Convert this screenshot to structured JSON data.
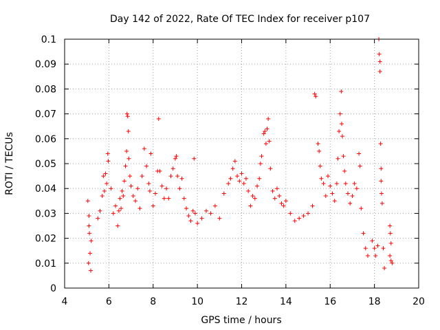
{
  "chart_data": {
    "type": "scatter",
    "title": "Day 142 of 2022, Rate Of TEC Index for receiver p107",
    "xlabel": "GPS time / hours",
    "ylabel": "ROTI / TECUs",
    "xlim": [
      4,
      20
    ],
    "ylim": [
      0,
      0.1
    ],
    "x_ticks": [
      "4",
      "6",
      "8",
      "10",
      "12",
      "14",
      "16",
      "18",
      "20"
    ],
    "y_ticks": [
      "0",
      "0.01",
      "0.02",
      "0.03",
      "0.04",
      "0.05",
      "0.06",
      "0.07",
      "0.08",
      "0.09",
      "0.1"
    ],
    "grid": true,
    "marker": "+",
    "series": [
      {
        "name": "ROTI",
        "color": "#ff0000",
        "points": [
          [
            5.05,
            0.035
          ],
          [
            5.1,
            0.029
          ],
          [
            5.12,
            0.022
          ],
          [
            5.15,
            0.014
          ],
          [
            5.08,
            0.01
          ],
          [
            5.18,
            0.007
          ],
          [
            5.2,
            0.019
          ],
          [
            5.1,
            0.025
          ],
          [
            5.5,
            0.028
          ],
          [
            5.6,
            0.031
          ],
          [
            5.7,
            0.037
          ],
          [
            5.75,
            0.045
          ],
          [
            5.8,
            0.039
          ],
          [
            5.85,
            0.046
          ],
          [
            5.9,
            0.042
          ],
          [
            5.95,
            0.054
          ],
          [
            5.97,
            0.051
          ],
          [
            6.1,
            0.04
          ],
          [
            6.2,
            0.03
          ],
          [
            6.3,
            0.033
          ],
          [
            6.4,
            0.025
          ],
          [
            6.45,
            0.031
          ],
          [
            6.5,
            0.036
          ],
          [
            6.55,
            0.032
          ],
          [
            6.6,
            0.039
          ],
          [
            6.65,
            0.037
          ],
          [
            6.7,
            0.043
          ],
          [
            6.75,
            0.049
          ],
          [
            6.8,
            0.055
          ],
          [
            6.82,
            0.07
          ],
          [
            6.85,
            0.069
          ],
          [
            6.88,
            0.063
          ],
          [
            6.9,
            0.052
          ],
          [
            6.95,
            0.045
          ],
          [
            7.0,
            0.041
          ],
          [
            7.1,
            0.037
          ],
          [
            7.2,
            0.035
          ],
          [
            7.3,
            0.04
          ],
          [
            7.4,
            0.032
          ],
          [
            7.5,
            0.045
          ],
          [
            7.6,
            0.056
          ],
          [
            7.7,
            0.049
          ],
          [
            7.8,
            0.042
          ],
          [
            7.85,
            0.039
          ],
          [
            7.9,
            0.054
          ],
          [
            8.0,
            0.033
          ],
          [
            8.1,
            0.038
          ],
          [
            8.2,
            0.047
          ],
          [
            8.25,
            0.068
          ],
          [
            8.3,
            0.047
          ],
          [
            8.4,
            0.041
          ],
          [
            8.5,
            0.036
          ],
          [
            8.6,
            0.04
          ],
          [
            8.7,
            0.036
          ],
          [
            8.8,
            0.045
          ],
          [
            8.9,
            0.048
          ],
          [
            9.0,
            0.052
          ],
          [
            9.05,
            0.053
          ],
          [
            9.1,
            0.045
          ],
          [
            9.2,
            0.04
          ],
          [
            9.3,
            0.044
          ],
          [
            9.4,
            0.036
          ],
          [
            9.5,
            0.032
          ],
          [
            9.6,
            0.029
          ],
          [
            9.7,
            0.027
          ],
          [
            9.8,
            0.031
          ],
          [
            9.85,
            0.052
          ],
          [
            9.9,
            0.03
          ],
          [
            10.0,
            0.026
          ],
          [
            10.2,
            0.028
          ],
          [
            10.4,
            0.031
          ],
          [
            10.6,
            0.03
          ],
          [
            10.8,
            0.033
          ],
          [
            11.0,
            0.028
          ],
          [
            11.2,
            0.038
          ],
          [
            11.4,
            0.042
          ],
          [
            11.5,
            0.044
          ],
          [
            11.6,
            0.048
          ],
          [
            11.7,
            0.051
          ],
          [
            11.8,
            0.045
          ],
          [
            11.9,
            0.043
          ],
          [
            12.0,
            0.046
          ],
          [
            12.1,
            0.042
          ],
          [
            12.2,
            0.044
          ],
          [
            12.3,
            0.039
          ],
          [
            12.4,
            0.033
          ],
          [
            12.5,
            0.037
          ],
          [
            12.6,
            0.036
          ],
          [
            12.7,
            0.041
          ],
          [
            12.8,
            0.044
          ],
          [
            12.85,
            0.05
          ],
          [
            12.9,
            0.053
          ],
          [
            13.0,
            0.062
          ],
          [
            13.05,
            0.063
          ],
          [
            13.1,
            0.058
          ],
          [
            13.15,
            0.064
          ],
          [
            13.2,
            0.068
          ],
          [
            13.25,
            0.059
          ],
          [
            13.3,
            0.048
          ],
          [
            13.4,
            0.039
          ],
          [
            13.5,
            0.036
          ],
          [
            13.6,
            0.04
          ],
          [
            13.7,
            0.037
          ],
          [
            13.8,
            0.034
          ],
          [
            13.9,
            0.033
          ],
          [
            14.0,
            0.035
          ],
          [
            14.2,
            0.03
          ],
          [
            14.4,
            0.027
          ],
          [
            14.6,
            0.028
          ],
          [
            14.8,
            0.029
          ],
          [
            15.0,
            0.03
          ],
          [
            15.2,
            0.033
          ],
          [
            15.3,
            0.078
          ],
          [
            15.35,
            0.077
          ],
          [
            15.45,
            0.058
          ],
          [
            15.5,
            0.055
          ],
          [
            15.55,
            0.049
          ],
          [
            15.6,
            0.044
          ],
          [
            15.7,
            0.042
          ],
          [
            15.8,
            0.037
          ],
          [
            15.9,
            0.045
          ],
          [
            16.0,
            0.041
          ],
          [
            16.1,
            0.038
          ],
          [
            16.2,
            0.035
          ],
          [
            16.3,
            0.042
          ],
          [
            16.35,
            0.052
          ],
          [
            16.4,
            0.063
          ],
          [
            16.45,
            0.07
          ],
          [
            16.5,
            0.079
          ],
          [
            16.52,
            0.066
          ],
          [
            16.55,
            0.061
          ],
          [
            16.6,
            0.053
          ],
          [
            16.65,
            0.047
          ],
          [
            16.7,
            0.042
          ],
          [
            16.8,
            0.038
          ],
          [
            16.9,
            0.034
          ],
          [
            17.0,
            0.037
          ],
          [
            17.1,
            0.042
          ],
          [
            17.2,
            0.04
          ],
          [
            17.3,
            0.054
          ],
          [
            17.35,
            0.049
          ],
          [
            17.4,
            0.032
          ],
          [
            17.5,
            0.022
          ],
          [
            17.6,
            0.016
          ],
          [
            17.7,
            0.013
          ],
          [
            17.9,
            0.019
          ],
          [
            18.0,
            0.016
          ],
          [
            18.05,
            0.013
          ],
          [
            18.15,
            0.017
          ],
          [
            18.2,
            0.1
          ],
          [
            18.22,
            0.094
          ],
          [
            18.25,
            0.091
          ],
          [
            18.25,
            0.087
          ],
          [
            18.28,
            0.058
          ],
          [
            18.3,
            0.048
          ],
          [
            18.3,
            0.043
          ],
          [
            18.32,
            0.038
          ],
          [
            18.35,
            0.034
          ],
          [
            18.4,
            0.016
          ],
          [
            18.45,
            0.008
          ],
          [
            18.7,
            0.025
          ],
          [
            18.72,
            0.022
          ],
          [
            18.75,
            0.018
          ],
          [
            18.7,
            0.013
          ],
          [
            18.75,
            0.011
          ],
          [
            18.8,
            0.01
          ]
        ]
      }
    ]
  }
}
